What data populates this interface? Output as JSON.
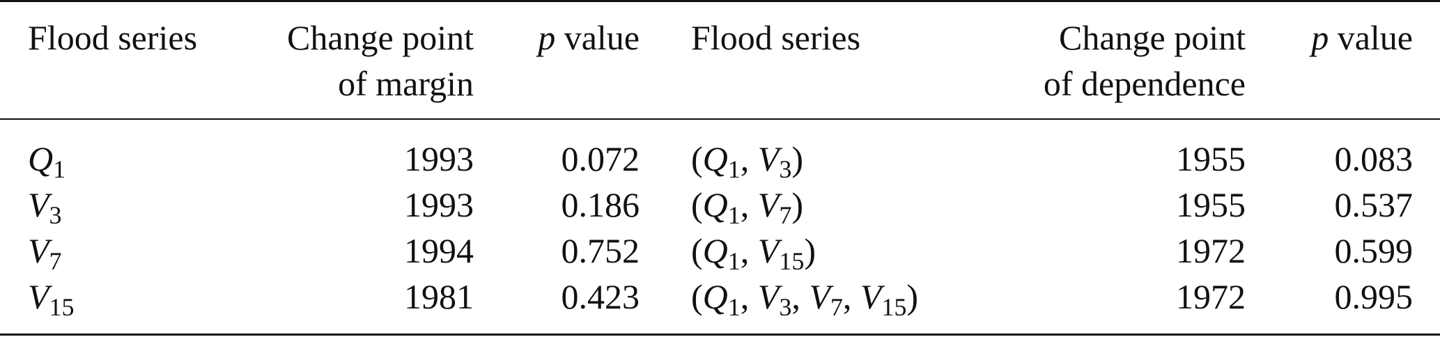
{
  "headers": {
    "flood_series_1": "Flood series",
    "change_point_margin_line1": "Change point",
    "change_point_margin_line2": "of margin",
    "p_value_1_p": "p",
    "p_value_1_rest": " value",
    "flood_series_2": "Flood series",
    "change_point_dependence_line1": "Change point",
    "change_point_dependence_line2": "of dependence",
    "p_value_2_p": "p",
    "p_value_2_rest": " value"
  },
  "rows": [
    {
      "series_var": "Q",
      "series_sub": "1",
      "margin_cp": "1993",
      "margin_p": "0.072",
      "dep": [
        {
          "pre": "(",
          "var": "Q",
          "sub": "1"
        },
        {
          "pre": ", ",
          "var": "V",
          "sub": "3"
        },
        {
          "post": ")"
        }
      ],
      "dep_cp": "1955",
      "dep_p": "0.083"
    },
    {
      "series_var": "V",
      "series_sub": "3",
      "margin_cp": "1993",
      "margin_p": "0.186",
      "dep_cp": "1955",
      "dep_p": "0.537"
    },
    {
      "series_var": "V",
      "series_sub": "7",
      "margin_cp": "1994",
      "margin_p": "0.752",
      "dep_cp": "1972",
      "dep_p": "0.599"
    },
    {
      "series_var": "V",
      "series_sub": "15",
      "margin_cp": "1981",
      "margin_p": "0.423",
      "dep_cp": "1972",
      "dep_p": "0.995"
    }
  ],
  "dep_text": {
    "r0": {
      "a": "(",
      "v1": "Q",
      "s1": "1",
      "c1": ", ",
      "v2": "V",
      "s2": "3",
      "end": ")"
    },
    "r1": {
      "a": "(",
      "v1": "Q",
      "s1": "1",
      "c1": ", ",
      "v2": "V",
      "s2": "7",
      "end": ")"
    },
    "r2": {
      "a": "(",
      "v1": "Q",
      "s1": "1",
      "c1": ", ",
      "v2": "V",
      "s2": "15",
      "end": ")"
    },
    "r3": {
      "a": "(",
      "v1": "Q",
      "s1": "1",
      "c1": ", ",
      "v2": "V",
      "s2": "3",
      "c2": ", ",
      "v3": "V",
      "s3": "7",
      "c3": ", ",
      "v4": "V",
      "s4": "15",
      "end": ")"
    }
  }
}
